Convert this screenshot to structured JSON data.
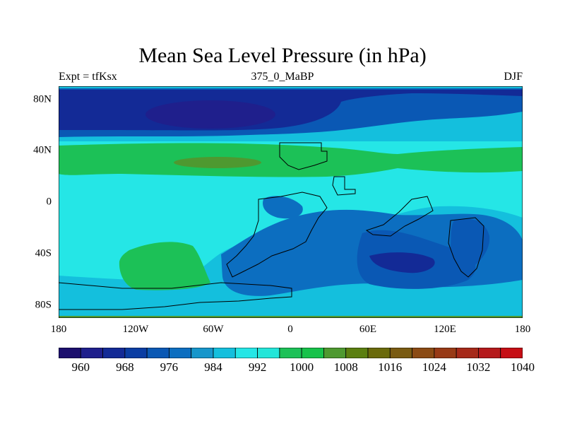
{
  "title": "Mean Sea Level Pressure (in hPa)",
  "subtitle_left": "Expt = tfKsx",
  "subtitle_center": "375_0_MaBP",
  "subtitle_right": "DJF",
  "latitude_labels": [
    "80N",
    "40N",
    "0",
    "40S",
    "80S"
  ],
  "longitude_labels": [
    "180",
    "120W",
    "60W",
    "0",
    "60E",
    "120E",
    "180"
  ],
  "colorbar": {
    "tick_labels": [
      "960",
      "968",
      "976",
      "984",
      "992",
      "1000",
      "1008",
      "1016",
      "1024",
      "1032",
      "1040"
    ],
    "colors": [
      "#1c0f6e",
      "#1f1f8c",
      "#132a96",
      "#0a3da3",
      "#0a58b4",
      "#0c6ec0",
      "#1796cb",
      "#14bfdd",
      "#25e6e6",
      "#23e6d9",
      "#1cc157",
      "#17c24a",
      "#4e9930",
      "#5b7f10",
      "#6a6a0b",
      "#7a5b12",
      "#8b4b14",
      "#983a16",
      "#a62919",
      "#b5191b",
      "#c60e15"
    ]
  }
}
